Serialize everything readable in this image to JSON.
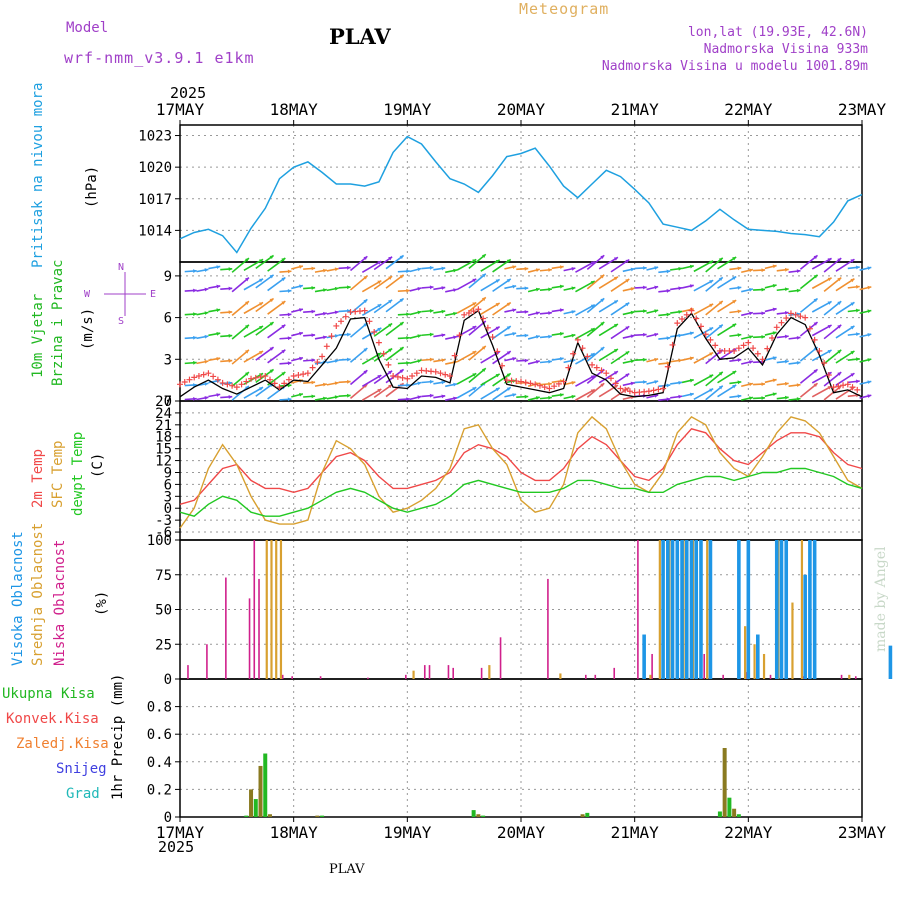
{
  "header": {
    "model_label": "Model",
    "model_name": "wrf-nmm_v3.9.1 e1km",
    "station": "PLAV",
    "product": "Meteogram",
    "lonlat": "lon,lat (19.93E, 42.6N)",
    "altitude": "Nadmorska Visina 933m",
    "model_altitude": "Nadmorska Visina u modelu 1001.89m"
  },
  "footer": {
    "station": "PLAV",
    "credit": "made by Angel"
  },
  "colors": {
    "pressure": "#1ea0e0",
    "wind_label": "#22b822",
    "wind_compass": "#a040c8",
    "t2m": "#f04848",
    "sfc": "#d8a030",
    "dewpt": "#22c822",
    "high_cloud": "#1e96e6",
    "mid_cloud": "#d8a030",
    "low_cloud": "#d0208c",
    "precip_total": "#22b822",
    "precip_conv": "#f04848",
    "precip_frozen": "#f08030",
    "snow": "#4040e0",
    "grad": "#20b8b8",
    "precip_bar": "#8a7a20"
  },
  "chart_data": [
    {
      "type": "line",
      "id": "pressure",
      "ylabel_left": "Pritisak na nivou mora",
      "ylabel_unit": "(hPa)",
      "ylim": [
        1011,
        1024
      ],
      "yticks": [
        1014,
        1017,
        1020,
        1023
      ],
      "x_start": "2025-05-17T00",
      "x_step_hours": 3,
      "series": [
        {
          "values": [
            1013.2,
            1013.8,
            1014.1,
            1013.5,
            1011.9,
            1014.2,
            1016.1,
            1018.9,
            1020.0,
            1020.5,
            1019.5,
            1018.4,
            1018.4,
            1018.2,
            1018.6,
            1021.4,
            1022.9,
            1022.2,
            1020.5,
            1018.9,
            1018.4,
            1017.6,
            1019.2,
            1021.0,
            1021.3,
            1021.8,
            1020.1,
            1018.2,
            1017.1,
            1018.4,
            1019.7,
            1019.1,
            1017.9,
            1016.6,
            1014.6,
            1014.3,
            1014.0,
            1014.9,
            1016.0,
            1015.0,
            1014.1,
            1014.0,
            1013.9,
            1013.7,
            1013.6,
            1013.4,
            1014.8,
            1016.8,
            1017.4
          ]
        }
      ]
    },
    {
      "type": "line",
      "id": "wind",
      "ylabel_left": [
        "10m Vjetar",
        "Brzina i Pravac"
      ],
      "ylabel_unit": "(m/s)",
      "compass_labels": {
        "n": "N",
        "s": "S",
        "e": "E",
        "w": "W"
      },
      "ylim": [
        0,
        10
      ],
      "yticks": [
        0,
        3,
        6,
        9
      ],
      "x_start": "2025-05-17T00",
      "x_step_hours": 3,
      "series": [
        {
          "name": "speed",
          "values": [
            0.3,
            1.0,
            1.5,
            0.9,
            0.5,
            1.0,
            1.5,
            0.8,
            1.5,
            1.4,
            2.6,
            3.8,
            5.9,
            6.0,
            3.0,
            1.0,
            0.9,
            1.8,
            1.7,
            1.3,
            5.8,
            6.5,
            4.0,
            1.2,
            1.0,
            0.8,
            0.6,
            0.9,
            4.2,
            2.0,
            1.5,
            0.5,
            0.3,
            0.4,
            0.6,
            5.2,
            6.3,
            4.5,
            3.0,
            3.1,
            3.8,
            2.6,
            4.8,
            6.0,
            5.5,
            3.3,
            0.6,
            0.8,
            0.3
          ]
        },
        {
          "name": "gust",
          "values": [
            1.2,
            1.7,
            2.0,
            1.3,
            1.0,
            1.6,
            1.8,
            1.0,
            1.8,
            2.0,
            3.2,
            5.4,
            6.4,
            6.5,
            4.2,
            1.8,
            1.6,
            2.2,
            2.1,
            1.8,
            6.2,
            6.6,
            4.6,
            1.5,
            1.4,
            1.2,
            0.9,
            1.4,
            4.4,
            2.6,
            2.0,
            0.9,
            0.6,
            0.7,
            0.9,
            5.6,
            6.5,
            4.8,
            3.6,
            3.6,
            4.2,
            3.0,
            5.3,
            6.3,
            6.0,
            3.6,
            1.0,
            1.2,
            0.6
          ]
        }
      ]
    },
    {
      "type": "line",
      "id": "temperature",
      "ylabel_left": [
        "2m Temp",
        "SFC Temp",
        "dewpt Temp"
      ],
      "ylabel_unit": "(C)",
      "ylim": [
        -8,
        27
      ],
      "yticks": [
        -6,
        -3,
        0,
        3,
        6,
        9,
        12,
        15,
        18,
        21,
        24,
        27
      ],
      "x_start": "2025-05-17T00",
      "x_step_hours": 3,
      "series": [
        {
          "name": "2m Temp",
          "values": [
            1,
            2,
            6,
            10,
            11,
            7,
            5,
            5,
            4,
            5,
            9,
            13,
            14,
            12,
            8,
            5,
            5,
            6,
            7,
            9,
            14,
            16,
            15,
            13,
            9,
            7,
            7,
            10,
            15,
            18,
            16,
            12,
            8,
            7,
            10,
            16,
            20,
            19,
            15,
            12,
            11,
            14,
            17,
            19,
            19,
            18,
            14,
            11,
            10
          ]
        },
        {
          "name": "SFC Temp",
          "values": [
            -5,
            0,
            10,
            16,
            11,
            3,
            -3,
            -4,
            -4,
            -3,
            9,
            17,
            15,
            11,
            3,
            -1,
            0,
            2,
            5,
            10,
            20,
            21,
            15,
            11,
            2,
            -1,
            0,
            6,
            19,
            23,
            20,
            12,
            6,
            4,
            9,
            19,
            23,
            21,
            14,
            10,
            8,
            13,
            19,
            23,
            22,
            19,
            13,
            7,
            5
          ]
        },
        {
          "name": "dewpt Temp",
          "values": [
            -1,
            -2,
            1,
            3,
            2,
            -1,
            -2,
            -2,
            -1,
            0,
            2,
            4,
            5,
            4,
            2,
            0,
            -1,
            0,
            1,
            3,
            6,
            7,
            6,
            5,
            4,
            4,
            4,
            5,
            7,
            7,
            6,
            5,
            5,
            4,
            4,
            6,
            7,
            8,
            8,
            7,
            8,
            9,
            9,
            10,
            10,
            9,
            8,
            6,
            5
          ]
        }
      ]
    },
    {
      "type": "bar",
      "id": "clouds",
      "ylabel_left": [
        "Visoka Oblacnost",
        "Srednja Oblacnost",
        "Niska Oblacnost"
      ],
      "ylabel_unit": "(%)",
      "ylim": [
        0,
        100
      ],
      "yticks": [
        0,
        25,
        50,
        75,
        100
      ],
      "x_start": "2025-05-17T00",
      "x_step_hours": 1,
      "series": [
        {
          "name": "Niska Oblacnost",
          "points": [
            [
              2,
              10
            ],
            [
              6,
              25
            ],
            [
              10,
              73
            ],
            [
              15,
              58
            ],
            [
              16,
              100
            ],
            [
              17,
              72
            ],
            [
              22,
              3
            ],
            [
              24,
              2
            ],
            [
              30,
              2
            ],
            [
              40,
              1
            ],
            [
              48,
              3
            ],
            [
              52,
              10
            ],
            [
              53,
              10
            ],
            [
              57,
              10
            ],
            [
              58,
              8
            ],
            [
              64,
              8
            ],
            [
              68,
              30
            ],
            [
              78,
              72
            ],
            [
              86,
              3
            ],
            [
              88,
              3
            ],
            [
              92,
              8
            ],
            [
              97,
              100
            ],
            [
              100,
              18
            ],
            [
              111,
              18
            ],
            [
              115,
              3
            ],
            [
              120,
              5
            ],
            [
              125,
              3
            ],
            [
              132,
              2
            ],
            [
              140,
              3
            ],
            [
              143,
              2
            ]
          ]
        },
        {
          "name": "Srednja Oblacnost",
          "points": [
            [
              18,
              100
            ],
            [
              19,
              100
            ],
            [
              20,
              100
            ],
            [
              21,
              100
            ],
            [
              49,
              6
            ],
            [
              65,
              10
            ],
            [
              80,
              4
            ],
            [
              99,
              3
            ],
            [
              101,
              100
            ],
            [
              103,
              100
            ],
            [
              106,
              100
            ],
            [
              108,
              100
            ],
            [
              111,
              100
            ],
            [
              119,
              38
            ],
            [
              121,
              25
            ],
            [
              123,
              18
            ],
            [
              126,
              100
            ],
            [
              129,
              55
            ],
            [
              131,
              100
            ],
            [
              141,
              3
            ]
          ]
        },
        {
          "name": "Visoka Oblacnost",
          "points": [
            [
              98,
              32
            ],
            [
              102,
              100
            ],
            [
              103,
              100
            ],
            [
              104,
              100
            ],
            [
              105,
              100
            ],
            [
              106,
              100
            ],
            [
              107,
              100
            ],
            [
              108,
              100
            ],
            [
              109,
              100
            ],
            [
              110,
              100
            ],
            [
              112,
              100
            ],
            [
              118,
              100
            ],
            [
              120,
              100
            ],
            [
              122,
              32
            ],
            [
              126,
              100
            ],
            [
              127,
              100
            ],
            [
              128,
              100
            ],
            [
              132,
              75
            ],
            [
              133,
              100
            ],
            [
              134,
              100
            ],
            [
              150,
              24
            ]
          ]
        }
      ]
    },
    {
      "type": "bar",
      "id": "precip",
      "ylabel_left": [
        "Ukupna Kisa",
        "Konvek.Kisa",
        "Zaledj.Kisa",
        "Snijeg",
        "Grad"
      ],
      "ylabel_unit": "1hr Precip (mm)",
      "ylim": [
        0,
        1.0
      ],
      "yticks": [
        0,
        0.2,
        0.4,
        0.6,
        0.8
      ],
      "x_start": "2025-05-17T00",
      "x_step_hours": 1,
      "series": [
        {
          "name": "Ukupna Kisa",
          "points": [
            [
              14,
              0.01
            ],
            [
              15,
              0.2
            ],
            [
              16,
              0.13
            ],
            [
              17,
              0.37
            ],
            [
              18,
              0.46
            ],
            [
              19,
              0.02
            ],
            [
              29,
              0.01
            ],
            [
              30,
              0.01
            ],
            [
              62,
              0.05
            ],
            [
              63,
              0.02
            ],
            [
              64,
              0.01
            ],
            [
              85,
              0.02
            ],
            [
              86,
              0.03
            ],
            [
              114,
              0.04
            ],
            [
              115,
              0.5
            ],
            [
              116,
              0.14
            ],
            [
              117,
              0.06
            ],
            [
              118,
              0.02
            ]
          ]
        }
      ]
    }
  ],
  "x_axis": {
    "year": "2025",
    "labels": [
      "17MAY",
      "18MAY",
      "19MAY",
      "20MAY",
      "21MAY",
      "22MAY",
      "23MAY"
    ]
  }
}
